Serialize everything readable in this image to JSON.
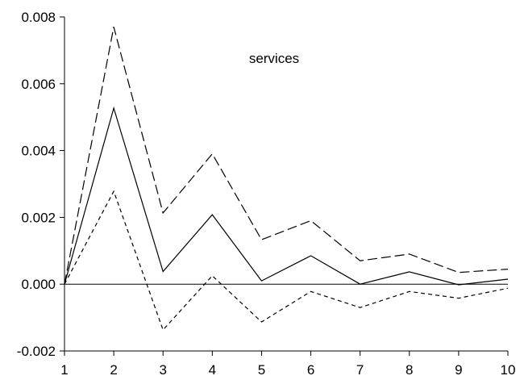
{
  "chart_data": {
    "type": "line",
    "annotation": "services",
    "x": [
      1,
      2,
      3,
      4,
      5,
      6,
      7,
      8,
      9,
      10
    ],
    "xticks": [
      "1",
      "2",
      "3",
      "4",
      "5",
      "6",
      "7",
      "8",
      "9",
      "10"
    ],
    "yticks": [
      "0.008",
      "0.006",
      "0.004",
      "0.002",
      "0.000",
      "-0.002"
    ],
    "ylim": [
      -0.002,
      0.008
    ],
    "zero_line": true,
    "grid": false,
    "series": [
      {
        "style": "long-dash",
        "values": [
          0.0,
          0.0077,
          0.00213,
          0.0039,
          0.00133,
          0.0019,
          0.0007,
          0.0009,
          0.00035,
          0.00045
        ]
      },
      {
        "style": "solid",
        "values": [
          0.0,
          0.00527,
          0.00038,
          0.00208,
          0.0001,
          0.00085,
          0.0,
          0.00037,
          -2e-05,
          0.00015
        ]
      },
      {
        "style": "short-dash",
        "values": [
          0.0,
          0.00278,
          -0.00137,
          0.00025,
          -0.00113,
          -0.00022,
          -0.0007,
          -0.00022,
          -0.00042,
          -0.00012
        ]
      }
    ],
    "colors": {
      "line": "#000000",
      "background": "#ffffff"
    }
  }
}
